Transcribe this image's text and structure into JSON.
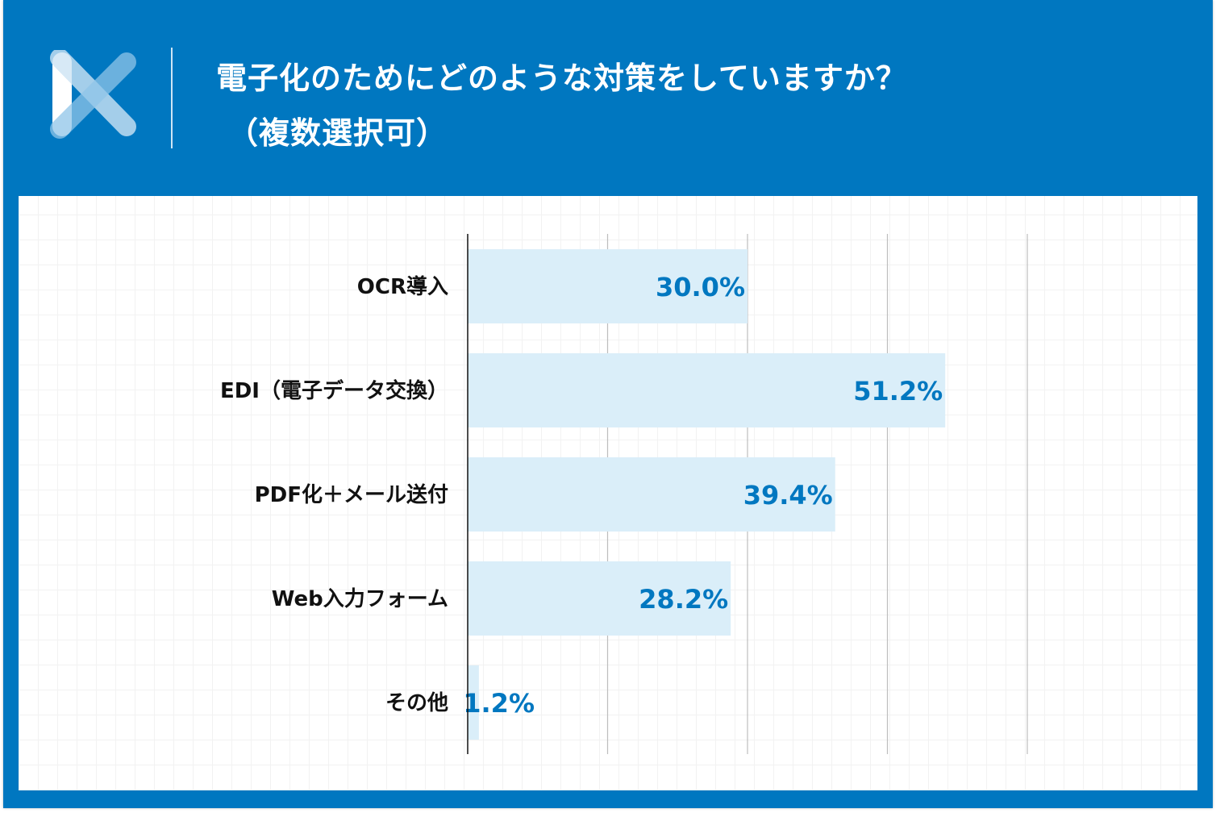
{
  "title_line1": "電子化のためにどのような対策をしていますか？",
  "title_line2": "（複数選択可）",
  "colors": {
    "frame": "#0077c0",
    "bar": "#daeef9",
    "value_label": "#0077c0"
  },
  "chart_data": {
    "type": "bar",
    "orientation": "horizontal",
    "title": "電子化のためにどのような対策をしていますか？（複数選択可）",
    "categories": [
      "OCR導入",
      "EDI（電子データ交換）",
      "PDF化＋メール送付",
      "Web入力フォーム",
      "その他"
    ],
    "values": [
      30.0,
      51.2,
      39.4,
      28.2,
      1.2
    ],
    "value_labels": [
      "30.0%",
      "51.2%",
      "39.4%",
      "28.2%",
      "1.2%"
    ],
    "xlim": [
      0,
      60
    ],
    "grid_values": [
      15,
      30,
      45,
      60
    ],
    "grid": true,
    "unit": "%"
  }
}
